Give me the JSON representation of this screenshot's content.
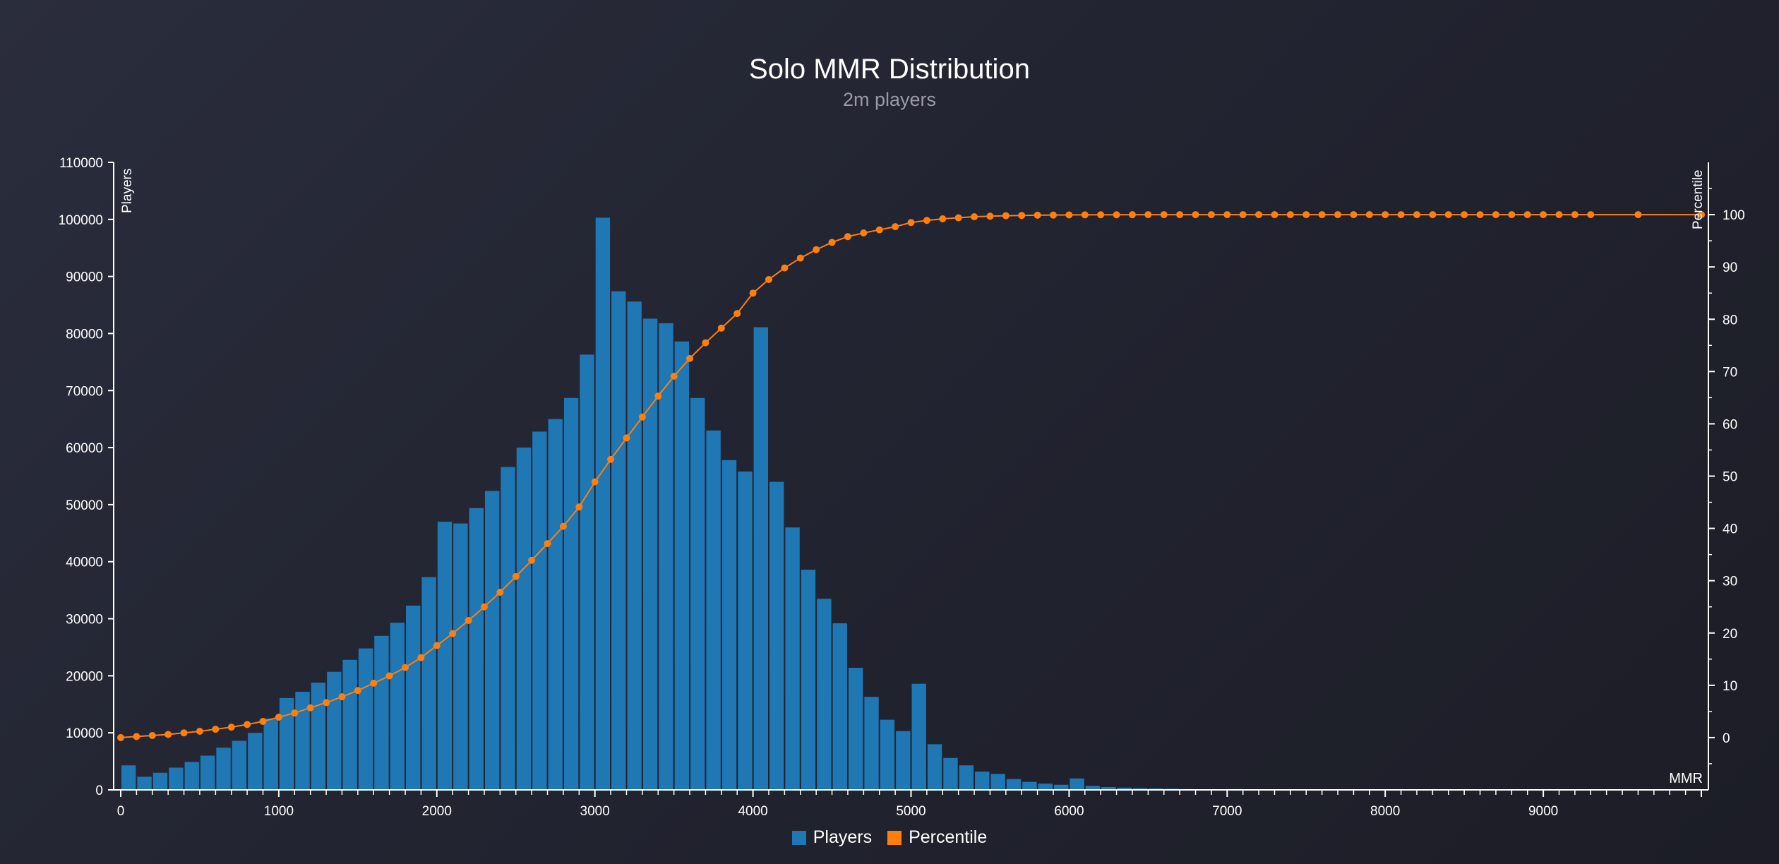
{
  "chart_data": {
    "type": "bar",
    "title": "Solo MMR Distribution",
    "subtitle": "2m players",
    "xlabel": "MMR",
    "ylabel": "Players",
    "y2label": "Percentile",
    "xlim": [
      0,
      10000
    ],
    "ylim": [
      0,
      110000
    ],
    "y2lim": [
      -10,
      110
    ],
    "x_ticks": [
      0,
      1000,
      2000,
      3000,
      4000,
      5000,
      6000,
      7000,
      8000,
      9000
    ],
    "y_ticks": [
      0,
      10000,
      20000,
      30000,
      40000,
      50000,
      60000,
      70000,
      80000,
      90000,
      100000,
      110000
    ],
    "y2_ticks": [
      0,
      10,
      20,
      30,
      40,
      50,
      60,
      70,
      80,
      90,
      100
    ],
    "bin_width": 100,
    "series": [
      {
        "name": "Players",
        "kind": "bar",
        "color": "#1f77b4",
        "x": [
          0,
          100,
          200,
          300,
          400,
          500,
          600,
          700,
          800,
          900,
          1000,
          1100,
          1200,
          1300,
          1400,
          1500,
          1600,
          1700,
          1800,
          1900,
          2000,
          2100,
          2200,
          2300,
          2400,
          2500,
          2600,
          2700,
          2800,
          2900,
          3000,
          3100,
          3200,
          3300,
          3400,
          3500,
          3600,
          3700,
          3800,
          3900,
          4000,
          4100,
          4200,
          4300,
          4400,
          4500,
          4600,
          4700,
          4800,
          4900,
          5000,
          5100,
          5200,
          5300,
          5400,
          5500,
          5600,
          5700,
          5800,
          5900,
          6000,
          6100,
          6200,
          6300,
          6400,
          6500,
          6600,
          6700,
          6800,
          6900,
          7000,
          7100
        ],
        "values": [
          4300,
          2300,
          3000,
          3900,
          4900,
          6000,
          7400,
          8600,
          10000,
          12500,
          16100,
          17200,
          18800,
          20700,
          22800,
          24800,
          27000,
          29300,
          32300,
          37300,
          47000,
          46700,
          49400,
          52400,
          56600,
          60000,
          62800,
          65000,
          68700,
          76300,
          100300,
          87400,
          85600,
          82600,
          81800,
          78600,
          68700,
          63000,
          57800,
          55800,
          81100,
          54000,
          46000,
          38600,
          33500,
          29200,
          21400,
          16300,
          12300,
          10300,
          18600,
          8000,
          5600,
          4300,
          3200,
          2800,
          1900,
          1400,
          1100,
          900,
          2000,
          700,
          500,
          400,
          300,
          250,
          200,
          150,
          100,
          80,
          150,
          50
        ]
      },
      {
        "name": "Percentile",
        "kind": "line",
        "color": "#ff7f0e",
        "x": [
          0,
          100,
          200,
          300,
          400,
          500,
          600,
          700,
          800,
          900,
          1000,
          1100,
          1200,
          1300,
          1400,
          1500,
          1600,
          1700,
          1800,
          1900,
          2000,
          2100,
          2200,
          2300,
          2400,
          2500,
          2600,
          2700,
          2800,
          2900,
          3000,
          3100,
          3200,
          3300,
          3400,
          3500,
          3600,
          3700,
          3800,
          3900,
          4000,
          4100,
          4200,
          4300,
          4400,
          4500,
          4600,
          4700,
          4800,
          4900,
          5000,
          5100,
          5200,
          5300,
          5400,
          5500,
          5600,
          5700,
          5800,
          5900,
          6000,
          6100,
          6200,
          6300,
          6400,
          6500,
          6600,
          6700,
          6800,
          6900,
          7000,
          7100,
          7200,
          7300,
          7400,
          7500,
          7600,
          7700,
          7800,
          7900,
          8000,
          8100,
          8200,
          8300,
          8400,
          8500,
          8600,
          8700,
          8800,
          8900,
          9000,
          9100,
          9200,
          9300,
          9600,
          10000
        ],
        "values": [
          0.0,
          0.2,
          0.4,
          0.6,
          0.9,
          1.2,
          1.6,
          2.0,
          2.5,
          3.1,
          3.9,
          4.7,
          5.7,
          6.7,
          7.8,
          9.0,
          10.4,
          11.8,
          13.4,
          15.3,
          17.6,
          19.9,
          22.4,
          25.0,
          27.8,
          30.8,
          33.9,
          37.1,
          40.4,
          44.1,
          48.9,
          53.2,
          57.3,
          61.3,
          65.3,
          69.1,
          72.5,
          75.5,
          78.3,
          81.1,
          85.0,
          87.6,
          89.8,
          91.7,
          93.3,
          94.7,
          95.8,
          96.5,
          97.1,
          97.7,
          98.5,
          98.9,
          99.2,
          99.4,
          99.6,
          99.7,
          99.8,
          99.85,
          99.9,
          99.92,
          99.95,
          99.96,
          99.97,
          99.98,
          99.99,
          100,
          100,
          100,
          100,
          100,
          100,
          100,
          100,
          100,
          100,
          100,
          100,
          100,
          100,
          100,
          100,
          100,
          100,
          100,
          100,
          100,
          100,
          100,
          100,
          100,
          100,
          100,
          100,
          100,
          100,
          100
        ]
      }
    ],
    "legend": [
      "Players",
      "Percentile"
    ],
    "legend_position": "bottom-center"
  }
}
